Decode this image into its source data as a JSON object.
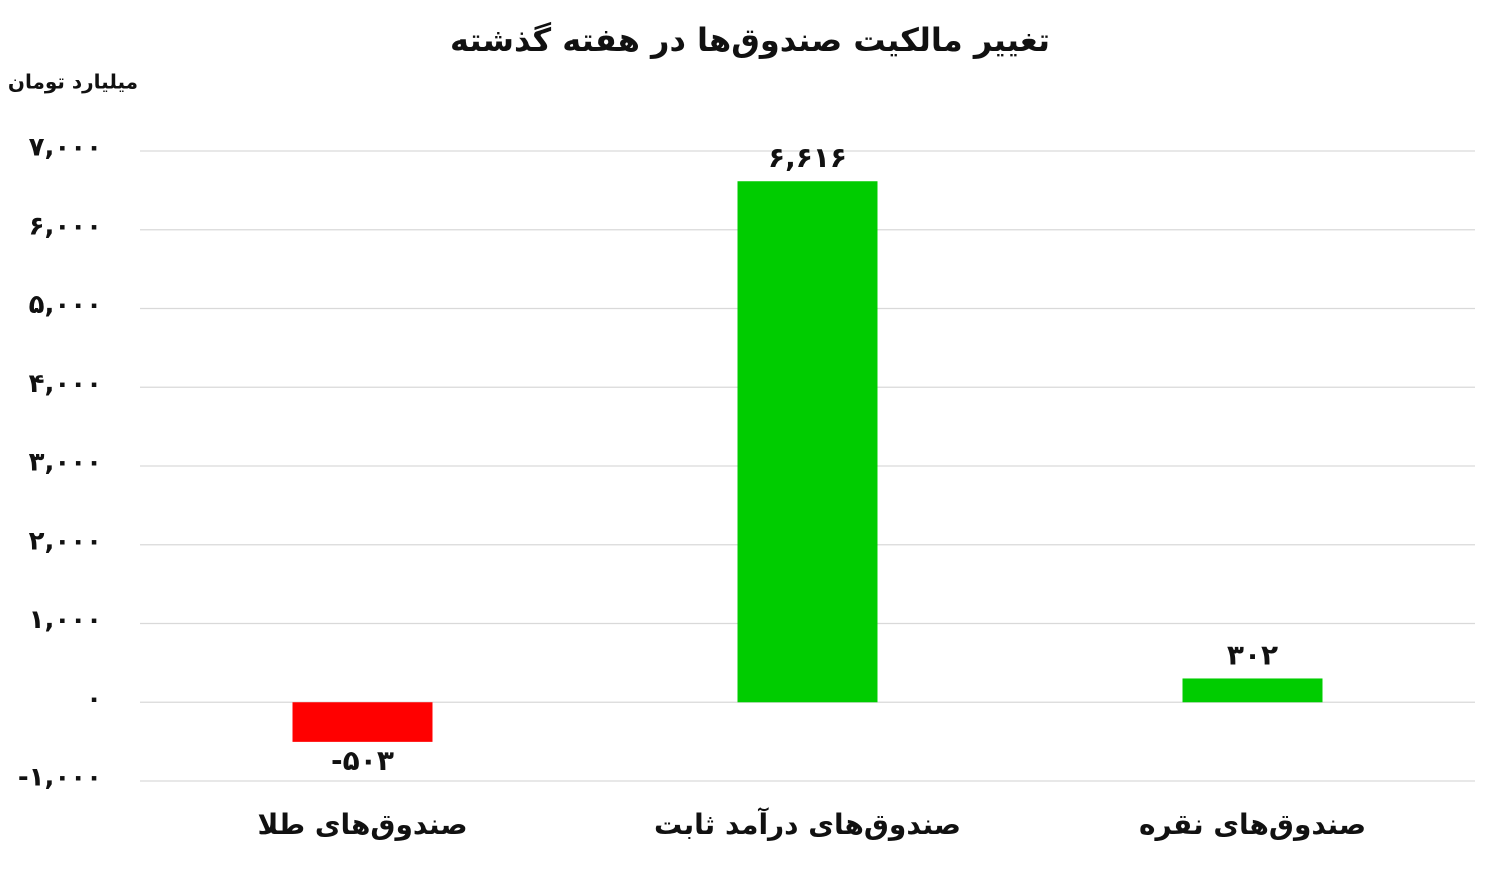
{
  "chart_data": {
    "type": "bar",
    "title": "تغییر مالکیت صندوق‌ها در هفته گذشته",
    "y_axis_label": "میلیارد تومان",
    "categories": [
      "صندوق‌های طلا",
      "صندوق‌های درآمد ثابت",
      "صندوق‌های نقره"
    ],
    "values": [
      -503,
      6616,
      302
    ],
    "value_labels": [
      "-۵۰۳",
      "۶,۶۱۶",
      "۳۰۲"
    ],
    "colors": [
      "#ff0000",
      "#00cc00",
      "#00cc00"
    ],
    "ylim": [
      -1000,
      7000
    ],
    "yticks": [
      {
        "value": -1000,
        "label": "-۱,۰۰۰"
      },
      {
        "value": 0,
        "label": "۰"
      },
      {
        "value": 1000,
        "label": "۱,۰۰۰"
      },
      {
        "value": 2000,
        "label": "۲,۰۰۰"
      },
      {
        "value": 3000,
        "label": "۳,۰۰۰"
      },
      {
        "value": 4000,
        "label": "۴,۰۰۰"
      },
      {
        "value": 5000,
        "label": "۵,۰۰۰"
      },
      {
        "value": 6000,
        "label": "۶,۰۰۰"
      },
      {
        "value": 7000,
        "label": "۷,۰۰۰"
      }
    ],
    "grid": true
  }
}
